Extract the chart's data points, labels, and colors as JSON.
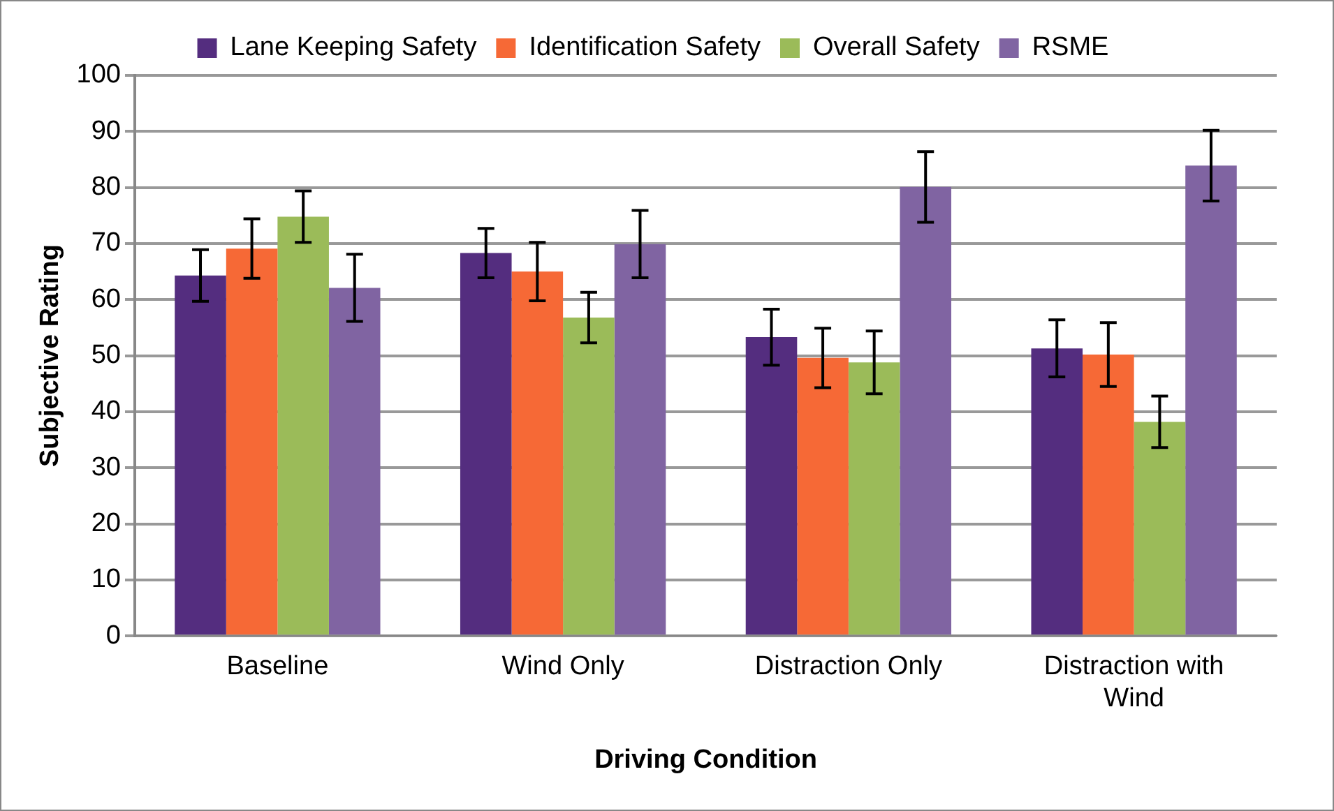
{
  "chart_data": {
    "type": "bar",
    "xlabel": "Driving Condition",
    "ylabel": "Subjective Rating",
    "categories": [
      "Baseline",
      "Wind Only",
      "Distraction Only",
      "Distraction with Wind"
    ],
    "series": [
      {
        "name": "Lane Keeping Safety",
        "color": "#542d7f",
        "values": [
          64.3,
          68.3,
          53.3,
          51.3
        ],
        "errors": [
          4.6,
          4.4,
          5,
          5.1
        ]
      },
      {
        "name": "Identification Safety",
        "color": "#f66936",
        "values": [
          69.1,
          65,
          49.6,
          50.2
        ],
        "errors": [
          5.3,
          5.2,
          5.3,
          5.7
        ]
      },
      {
        "name": "Overall Safety",
        "color": "#9bbb59",
        "values": [
          74.8,
          56.8,
          48.8,
          38.2
        ],
        "errors": [
          4.6,
          4.5,
          5.6,
          4.6
        ]
      },
      {
        "name": "RSME",
        "color": "#8064a2",
        "values": [
          62.1,
          69.9,
          80.1,
          83.9
        ],
        "errors": [
          6,
          6,
          6.3,
          6.3
        ]
      }
    ],
    "ylim": [
      0,
      100
    ],
    "yticks": [
      0,
      10,
      20,
      30,
      40,
      50,
      60,
      70,
      80,
      90,
      100
    ],
    "grid": "y",
    "legend": "top"
  }
}
